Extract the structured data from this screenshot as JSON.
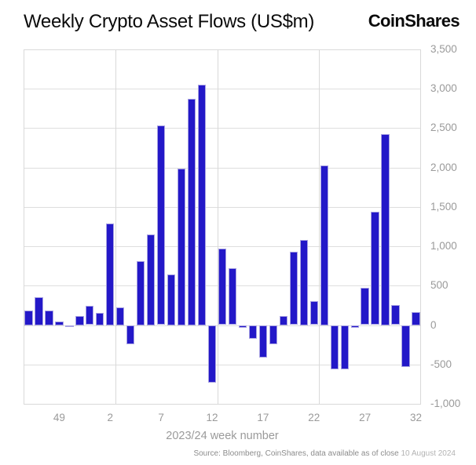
{
  "header": {
    "title": "Weekly Crypto Asset Flows (US$m)",
    "logo_text": "CoinShares"
  },
  "chart_data": {
    "type": "bar",
    "title": "Weekly Crypto Asset Flows (US$m)",
    "xlabel": "2023/24 week number",
    "ylabel": "",
    "ylim": [
      -1000,
      3500
    ],
    "ytick_interval": 500,
    "ytick_labels": [
      "-1,000",
      "-500",
      "0",
      "500",
      "1,000",
      "1,500",
      "2,000",
      "2,500",
      "3,000",
      "3,500"
    ],
    "categories": [
      "46",
      "47",
      "48",
      "49",
      "50",
      "51",
      "52",
      "1",
      "2",
      "3",
      "4",
      "5",
      "6",
      "7",
      "8",
      "9",
      "10",
      "11",
      "12",
      "13",
      "14",
      "15",
      "16",
      "17",
      "18",
      "19",
      "20",
      "21",
      "22",
      "23",
      "24",
      "25",
      "26",
      "27",
      "28",
      "29",
      "30",
      "31",
      "32"
    ],
    "values": [
      190,
      355,
      190,
      50,
      -25,
      115,
      245,
      155,
      1290,
      230,
      -240,
      810,
      1150,
      2530,
      640,
      1990,
      2870,
      3050,
      -730,
      970,
      720,
      -30,
      -170,
      -410,
      -240,
      120,
      930,
      1080,
      300,
      2030,
      -560,
      -560,
      -30,
      470,
      1440,
      2430,
      250,
      -530,
      170
    ],
    "xticks_shown": [
      "49",
      "2",
      "7",
      "12",
      "17",
      "22",
      "27",
      "32"
    ],
    "vgrid_after_weeks": [
      "2",
      "12",
      "22"
    ],
    "grid": true,
    "legend": null,
    "bar_color": "#2318c8",
    "bar_border_color": "#a9a3e2",
    "grid_color": "#dedede",
    "axis_text_color": "#9a9a9a"
  },
  "footer": {
    "source_prefix": "Source: Bloomberg, CoinShares, data available as of close",
    "source_date": "10 August 2024"
  }
}
